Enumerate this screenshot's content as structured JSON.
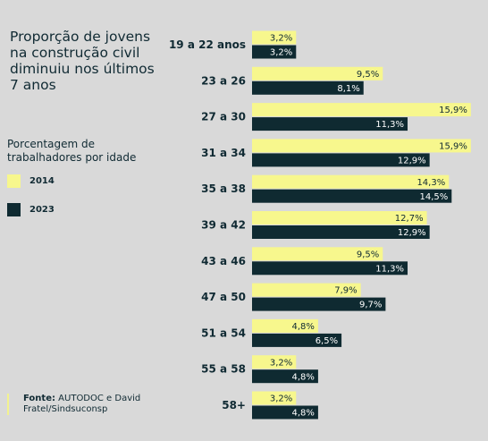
{
  "title": "Proporção de jovens\nna construção civil\ndiminuiu nos últimos\n7 anos",
  "legend": {
    "title": "Porcentagem de\ntrabalhadores por idade",
    "items": [
      {
        "label": "2014",
        "color": "#f7f78d"
      },
      {
        "label": "2023",
        "color": "#0f2a31"
      }
    ]
  },
  "source": {
    "label": "Fonte:",
    "text": "AUTODOC e David Fratel/Sindsuconsp"
  },
  "chart_data": {
    "type": "bar",
    "orientation": "horizontal",
    "categories": [
      "19 a 22 anos",
      "23 a 26",
      "27 a 30",
      "31 a 34",
      "35 a 38",
      "39 a 42",
      "43 a 46",
      "47 a 50",
      "51 a 54",
      "55 a 58",
      "58+"
    ],
    "series": [
      {
        "name": "2014",
        "color": "#f7f78d",
        "values": [
          3.2,
          9.5,
          15.9,
          15.9,
          14.3,
          12.7,
          9.5,
          7.9,
          4.8,
          3.2,
          3.2
        ],
        "labels": [
          "3,2%",
          "9,5%",
          "15,9%",
          "15,9%",
          "14,3%",
          "12,7%",
          "9,5%",
          "7,9%",
          "4,8%",
          "3,2%",
          "3,2%"
        ]
      },
      {
        "name": "2023",
        "color": "#0f2a31",
        "values": [
          3.2,
          8.1,
          11.3,
          12.9,
          14.5,
          12.9,
          11.3,
          9.7,
          6.5,
          4.8,
          4.8
        ],
        "labels": [
          "3,2%",
          "8,1%",
          "11,3%",
          "12,9%",
          "14,5%",
          "12,9%",
          "11,3%",
          "9,7%",
          "6,5%",
          "4,8%",
          "4,8%"
        ]
      }
    ],
    "xlim": [
      0,
      16
    ],
    "grid": false,
    "legend_position": "left"
  }
}
